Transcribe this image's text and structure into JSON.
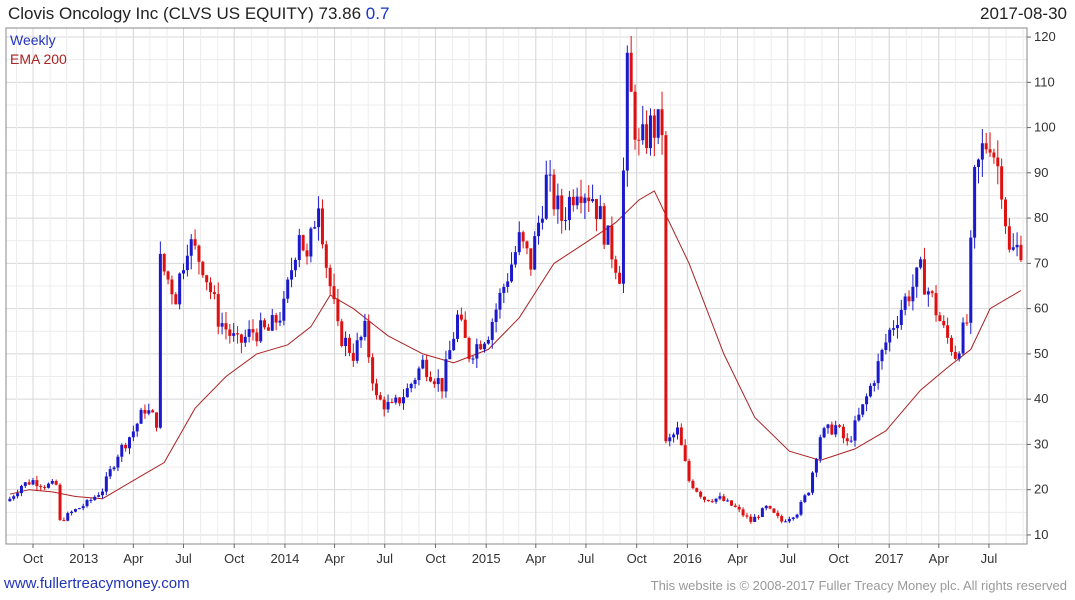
{
  "header": {
    "title": "Clovis Oncology Inc (CLVS US EQUITY) 73.86",
    "change": "0.7",
    "date": "2017-08-30"
  },
  "footer": {
    "site": "www.fullertreacymoney.com",
    "notice": "This website is © 2008-2017 Fuller Treacy Money plc. All rights reserved"
  },
  "colors": {
    "up": "#1a1acc",
    "down": "#dd1111",
    "ema": "#aa2222",
    "grid": "#d8d8d8"
  },
  "chart_data": {
    "type": "candlestick",
    "legend": [
      {
        "name": "Weekly",
        "color": "#2233bb"
      },
      {
        "name": "EMA 200",
        "color": "#aa2222"
      }
    ],
    "ylim": [
      8,
      122
    ],
    "yticks": [
      10,
      20,
      30,
      40,
      50,
      60,
      70,
      80,
      90,
      100,
      110,
      120
    ],
    "xticks": [
      "Oct",
      "2013",
      "Apr",
      "Jul",
      "Oct",
      "2014",
      "Apr",
      "Jul",
      "Oct",
      "2015",
      "Apr",
      "Jul",
      "Oct",
      "2016",
      "Apr",
      "Jul",
      "Oct",
      "2017",
      "Apr",
      "Jul"
    ],
    "grid": true,
    "weekly_close_anchors": [
      [
        "2012-08-20",
        18
      ],
      [
        "2012-09-10",
        21
      ],
      [
        "2012-10-01",
        22
      ],
      [
        "2012-10-22",
        21
      ],
      [
        "2012-11-12",
        21
      ],
      [
        "2012-11-19",
        13
      ],
      [
        "2012-12-10",
        15
      ],
      [
        "2013-01-07",
        17
      ],
      [
        "2013-02-04",
        20
      ],
      [
        "2013-03-04",
        28
      ],
      [
        "2013-04-01",
        33
      ],
      [
        "2013-04-22",
        38
      ],
      [
        "2013-05-13",
        35
      ],
      [
        "2013-05-20",
        70
      ],
      [
        "2013-06-17",
        63
      ],
      [
        "2013-07-08",
        75
      ],
      [
        "2013-08-05",
        70
      ],
      [
        "2013-09-02",
        58
      ],
      [
        "2013-10-07",
        52
      ],
      [
        "2013-11-04",
        55
      ],
      [
        "2013-12-02",
        55
      ],
      [
        "2013-12-30",
        60
      ],
      [
        "2014-01-27",
        78
      ],
      [
        "2014-02-10",
        70
      ],
      [
        "2014-03-03",
        85
      ],
      [
        "2014-03-17",
        70
      ],
      [
        "2014-04-07",
        55
      ],
      [
        "2014-05-05",
        50
      ],
      [
        "2014-05-26",
        55
      ],
      [
        "2014-06-16",
        40
      ],
      [
        "2014-07-14",
        38
      ],
      [
        "2014-08-11",
        42
      ],
      [
        "2014-09-08",
        48
      ],
      [
        "2014-10-13",
        43
      ],
      [
        "2014-11-10",
        58
      ],
      [
        "2014-12-01",
        50
      ],
      [
        "2015-01-05",
        55
      ],
      [
        "2015-02-02",
        65
      ],
      [
        "2015-03-02",
        75
      ],
      [
        "2015-03-23",
        70
      ],
      [
        "2015-04-20",
        88
      ],
      [
        "2015-05-18",
        80
      ],
      [
        "2015-06-15",
        88
      ],
      [
        "2015-07-13",
        85
      ],
      [
        "2015-08-10",
        75
      ],
      [
        "2015-08-31",
        68
      ],
      [
        "2015-09-14",
        112
      ],
      [
        "2015-10-05",
        95
      ],
      [
        "2015-10-26",
        100
      ],
      [
        "2015-11-16",
        100
      ],
      [
        "2015-11-23",
        30
      ],
      [
        "2015-12-14",
        33
      ],
      [
        "2016-01-04",
        22
      ],
      [
        "2016-02-01",
        18
      ],
      [
        "2016-02-29",
        18
      ],
      [
        "2016-03-28",
        16
      ],
      [
        "2016-04-25",
        13
      ],
      [
        "2016-05-23",
        16
      ],
      [
        "2016-06-20",
        13
      ],
      [
        "2016-07-18",
        15
      ],
      [
        "2016-08-08",
        20
      ],
      [
        "2016-08-29",
        32
      ],
      [
        "2016-09-26",
        34
      ],
      [
        "2016-10-17",
        30
      ],
      [
        "2016-11-14",
        38
      ],
      [
        "2016-12-05",
        45
      ],
      [
        "2017-01-02",
        55
      ],
      [
        "2017-01-30",
        62
      ],
      [
        "2017-02-27",
        68
      ],
      [
        "2017-03-20",
        62
      ],
      [
        "2017-04-10",
        55
      ],
      [
        "2017-05-01",
        50
      ],
      [
        "2017-05-22",
        57
      ],
      [
        "2017-06-05",
        88
      ],
      [
        "2017-06-19",
        95
      ],
      [
        "2017-07-03",
        98
      ],
      [
        "2017-07-24",
        88
      ],
      [
        "2017-08-07",
        72
      ],
      [
        "2017-08-28",
        73.86
      ]
    ],
    "ema_200": [
      [
        "2012-08-20",
        19
      ],
      [
        "2012-09-24",
        20
      ],
      [
        "2012-11-05",
        19.5
      ],
      [
        "2012-12-17",
        18.5
      ],
      [
        "2013-02-04",
        18
      ],
      [
        "2013-04-01",
        22
      ],
      [
        "2013-05-27",
        26
      ],
      [
        "2013-07-22",
        38
      ],
      [
        "2013-09-16",
        45
      ],
      [
        "2013-11-11",
        50
      ],
      [
        "2014-01-06",
        52
      ],
      [
        "2014-02-17",
        56
      ],
      [
        "2014-03-24",
        63
      ],
      [
        "2014-05-05",
        60
      ],
      [
        "2014-07-07",
        54
      ],
      [
        "2014-09-08",
        50
      ],
      [
        "2014-11-03",
        48
      ],
      [
        "2015-01-05",
        51
      ],
      [
        "2015-03-02",
        58
      ],
      [
        "2015-05-04",
        70
      ],
      [
        "2015-07-06",
        75
      ],
      [
        "2015-08-24",
        79
      ],
      [
        "2015-10-05",
        84
      ],
      [
        "2015-11-02",
        86
      ],
      [
        "2016-01-04",
        70
      ],
      [
        "2016-03-07",
        50
      ],
      [
        "2016-05-02",
        36
      ],
      [
        "2016-07-04",
        28.5
      ],
      [
        "2016-08-29",
        26.5
      ],
      [
        "2016-10-31",
        29
      ],
      [
        "2016-12-26",
        33
      ],
      [
        "2017-02-27",
        42
      ],
      [
        "2017-04-17",
        47
      ],
      [
        "2017-05-29",
        51
      ],
      [
        "2017-07-03",
        60
      ],
      [
        "2017-08-28",
        64
      ]
    ]
  }
}
